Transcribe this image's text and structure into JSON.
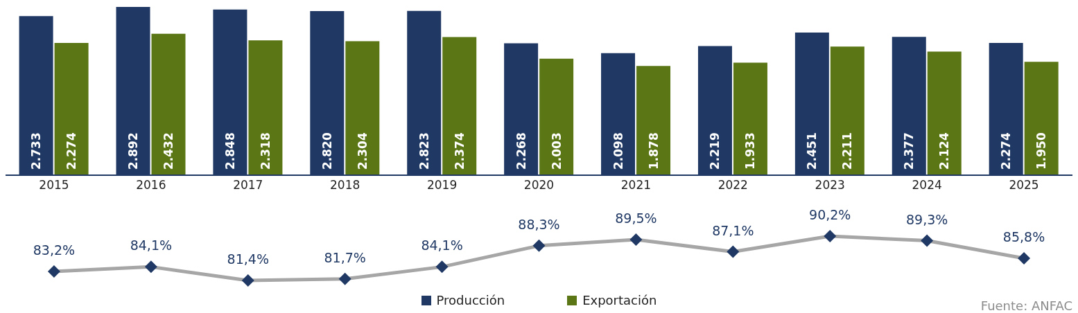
{
  "chart_data": [
    {
      "type": "bar",
      "categories": [
        "2015",
        "2016",
        "2017",
        "2018",
        "2019",
        "2020",
        "2021",
        "2022",
        "2023",
        "2024",
        "2025"
      ],
      "series": [
        {
          "name": "Producción",
          "color": "#1f3864",
          "values": [
            2733,
            2892,
            2848,
            2820,
            2823,
            2268,
            2098,
            2219,
            2451,
            2377,
            2274
          ],
          "value_labels": [
            "2.733",
            "2.892",
            "2.848",
            "2.820",
            "2.823",
            "2.268",
            "2.098",
            "2.219",
            "2.451",
            "2.377",
            "2.274"
          ]
        },
        {
          "name": "Exportación",
          "color": "#5b7615",
          "values": [
            2274,
            2432,
            2318,
            2304,
            2374,
            2003,
            1878,
            1933,
            2211,
            2124,
            1950
          ],
          "value_labels": [
            "2.274",
            "2.432",
            "2.318",
            "2.304",
            "2.374",
            "2.003",
            "1.878",
            "1.933",
            "2.211",
            "2.124",
            "1.950"
          ]
        }
      ],
      "legend": "bottom",
      "annotations": [
        "Fuente: ANFAC"
      ]
    },
    {
      "type": "line",
      "categories": [
        null,
        null,
        null,
        null,
        null,
        null,
        null,
        null,
        null,
        null,
        null
      ],
      "series": [
        {
          "color": "#a6a6a6",
          "values": [
            83.2,
            84.1,
            81.4,
            81.7,
            84.1,
            88.3,
            89.5,
            87.1,
            90.2,
            89.3,
            85.8
          ],
          "value_labels": [
            "83,2%",
            "84,1%",
            "81,4%",
            "81,7%",
            "84,1%",
            "88,3%",
            "89,5%",
            "87,1%",
            "90,2%",
            "89,3%",
            "85,8%"
          ]
        }
      ],
      "marker": "diamond"
    }
  ]
}
